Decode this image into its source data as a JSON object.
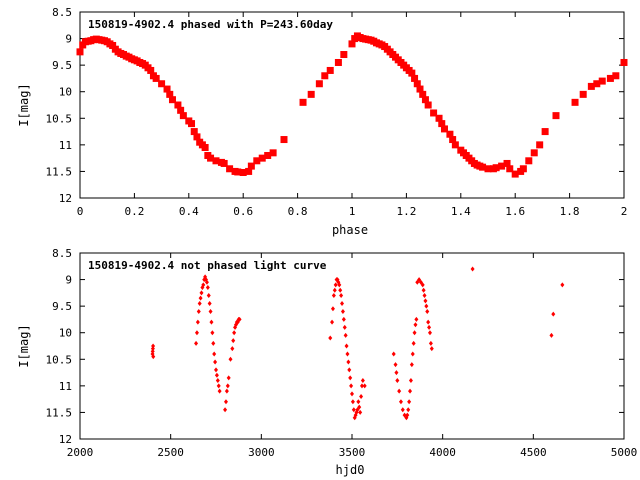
{
  "chart_data": [
    {
      "type": "scatter",
      "title": "150819-4902.4 phased with P=243.60day",
      "xlabel": "phase",
      "ylabel": "I[mag]",
      "xlim": [
        0,
        2
      ],
      "ylim": [
        8.5,
        12
      ],
      "y_inverted": true,
      "xticks": [
        "0",
        "0.2",
        "0.4",
        "0.6",
        "0.8",
        "1",
        "1.2",
        "1.4",
        "1.6",
        "1.8",
        "2"
      ],
      "yticks": [
        "8.5",
        "9",
        "9.5",
        "10",
        "10.5",
        "11",
        "11.5",
        "12"
      ],
      "marker_color": "#ff0000",
      "x": [
        0.0,
        0.01,
        0.02,
        0.03,
        0.04,
        0.05,
        0.06,
        0.07,
        0.08,
        0.09,
        0.1,
        0.11,
        0.12,
        0.13,
        0.14,
        0.15,
        0.16,
        0.17,
        0.18,
        0.19,
        0.2,
        0.21,
        0.22,
        0.23,
        0.24,
        0.25,
        0.26,
        0.27,
        0.28,
        0.3,
        0.32,
        0.33,
        0.34,
        0.36,
        0.37,
        0.38,
        0.4,
        0.41,
        0.42,
        0.43,
        0.44,
        0.45,
        0.46,
        0.47,
        0.48,
        0.5,
        0.52,
        0.53,
        0.55,
        0.57,
        0.58,
        0.6,
        0.62,
        0.63,
        0.65,
        0.67,
        0.69,
        0.71,
        0.75,
        0.82,
        0.85,
        0.88,
        0.9,
        0.92,
        0.95,
        0.97,
        1.0,
        1.01,
        1.02,
        1.03,
        1.04,
        1.05,
        1.06,
        1.07,
        1.08,
        1.09,
        1.1,
        1.11,
        1.12,
        1.13,
        1.14,
        1.15,
        1.16,
        1.17,
        1.18,
        1.19,
        1.2,
        1.21,
        1.22,
        1.23,
        1.24,
        1.25,
        1.26,
        1.27,
        1.28,
        1.3,
        1.32,
        1.33,
        1.34,
        1.36,
        1.37,
        1.38,
        1.4,
        1.41,
        1.42,
        1.43,
        1.44,
        1.45,
        1.46,
        1.47,
        1.48,
        1.5,
        1.52,
        1.53,
        1.55,
        1.57,
        1.58,
        1.6,
        1.62,
        1.63,
        1.65,
        1.67,
        1.69,
        1.71,
        1.75,
        1.82,
        1.85,
        1.88,
        1.9,
        1.92,
        1.95,
        1.97,
        2.0
      ],
      "y": [
        9.25,
        9.12,
        9.06,
        9.05,
        9.04,
        9.02,
        9.01,
        9.02,
        9.03,
        9.04,
        9.06,
        9.1,
        9.13,
        9.2,
        9.25,
        9.28,
        9.3,
        9.33,
        9.35,
        9.38,
        9.4,
        9.42,
        9.45,
        9.47,
        9.5,
        9.55,
        9.6,
        9.7,
        9.75,
        9.85,
        9.95,
        10.05,
        10.15,
        10.25,
        10.35,
        10.45,
        10.55,
        10.6,
        10.75,
        10.85,
        10.95,
        11.0,
        11.05,
        11.2,
        11.25,
        11.3,
        11.33,
        11.35,
        11.45,
        11.5,
        11.51,
        11.52,
        11.5,
        11.4,
        11.3,
        11.25,
        11.2,
        11.15,
        10.9,
        10.2,
        10.05,
        9.85,
        9.7,
        9.6,
        9.45,
        9.3,
        9.1,
        9.0,
        8.95,
        8.98,
        9.0,
        9.01,
        9.02,
        9.03,
        9.05,
        9.08,
        9.1,
        9.12,
        9.15,
        9.2,
        9.25,
        9.3,
        9.35,
        9.4,
        9.45,
        9.5,
        9.55,
        9.6,
        9.65,
        9.75,
        9.85,
        9.95,
        10.05,
        10.15,
        10.25,
        10.4,
        10.5,
        10.6,
        10.7,
        10.8,
        10.9,
        11.0,
        11.1,
        11.15,
        11.2,
        11.25,
        11.3,
        11.35,
        11.38,
        11.4,
        11.42,
        11.45,
        11.45,
        11.43,
        11.4,
        11.35,
        11.45,
        11.55,
        11.5,
        11.45,
        11.3,
        11.15,
        11.0,
        10.75,
        10.45,
        10.2,
        10.05,
        9.9,
        9.85,
        9.8,
        9.75,
        9.7,
        9.45
      ],
      "grid": false
    },
    {
      "type": "scatter",
      "title": "150819-4902.4 not phased light curve",
      "xlabel": "hjd0",
      "ylabel": "I[mag]",
      "xlim": [
        2000,
        5000
      ],
      "ylim": [
        8.5,
        12
      ],
      "y_inverted": true,
      "xticks": [
        "2000",
        "2500",
        "3000",
        "3500",
        "4000",
        "4500",
        "5000"
      ],
      "yticks": [
        "8.5",
        "9",
        "9.5",
        "10",
        "10.5",
        "11",
        "11.5",
        "12"
      ],
      "marker_color": "#ff0000",
      "x": [
        2400,
        2401,
        2402,
        2403,
        2404,
        2640,
        2645,
        2650,
        2655,
        2660,
        2665,
        2670,
        2675,
        2680,
        2685,
        2690,
        2695,
        2700,
        2705,
        2710,
        2715,
        2720,
        2725,
        2730,
        2735,
        2740,
        2745,
        2750,
        2755,
        2760,
        2765,
        2770,
        2800,
        2805,
        2810,
        2815,
        2820,
        2830,
        2840,
        2845,
        2850,
        2855,
        2860,
        2865,
        2870,
        2875,
        2880,
        3380,
        3390,
        3395,
        3400,
        3405,
        3410,
        3415,
        3420,
        3425,
        3430,
        3435,
        3440,
        3445,
        3450,
        3455,
        3460,
        3465,
        3470,
        3475,
        3480,
        3485,
        3490,
        3495,
        3500,
        3505,
        3510,
        3515,
        3520,
        3525,
        3530,
        3535,
        3540,
        3545,
        3550,
        3555,
        3560,
        3570,
        3730,
        3740,
        3745,
        3750,
        3760,
        3770,
        3780,
        3790,
        3800,
        3805,
        3810,
        3815,
        3820,
        3825,
        3830,
        3835,
        3840,
        3845,
        3850,
        3855,
        3860,
        3870,
        3880,
        3890,
        3895,
        3900,
        3905,
        3910,
        3915,
        3920,
        3925,
        3930,
        3935,
        3940,
        4165,
        4600,
        4610,
        4660
      ],
      "y": [
        10.4,
        10.35,
        10.3,
        10.25,
        10.45,
        10.2,
        10.0,
        9.8,
        9.6,
        9.45,
        9.35,
        9.25,
        9.15,
        9.1,
        9.0,
        8.95,
        9.0,
        9.05,
        9.15,
        9.3,
        9.45,
        9.6,
        9.8,
        10.0,
        10.2,
        10.4,
        10.55,
        10.7,
        10.8,
        10.9,
        11.0,
        11.1,
        11.45,
        11.3,
        11.1,
        11.0,
        10.85,
        10.5,
        10.3,
        10.15,
        10.0,
        9.9,
        9.85,
        9.8,
        9.8,
        9.75,
        9.75,
        10.1,
        9.8,
        9.55,
        9.3,
        9.2,
        9.1,
        9.0,
        9.0,
        9.05,
        9.1,
        9.2,
        9.3,
        9.45,
        9.6,
        9.75,
        9.9,
        10.05,
        10.25,
        10.4,
        10.55,
        10.7,
        10.85,
        11.0,
        11.15,
        11.3,
        11.45,
        11.6,
        11.55,
        11.5,
        11.45,
        11.3,
        11.4,
        11.5,
        11.2,
        11.0,
        10.9,
        11.0,
        10.4,
        10.6,
        10.75,
        10.9,
        11.1,
        11.3,
        11.45,
        11.55,
        11.6,
        11.55,
        11.45,
        11.3,
        11.1,
        10.9,
        10.6,
        10.4,
        10.2,
        10.0,
        9.85,
        9.75,
        9.05,
        9.0,
        9.05,
        9.1,
        9.2,
        9.3,
        9.4,
        9.5,
        9.6,
        9.8,
        9.9,
        10.0,
        10.2,
        10.3,
        8.8,
        10.05,
        9.65,
        9.1
      ],
      "grid": false
    }
  ]
}
